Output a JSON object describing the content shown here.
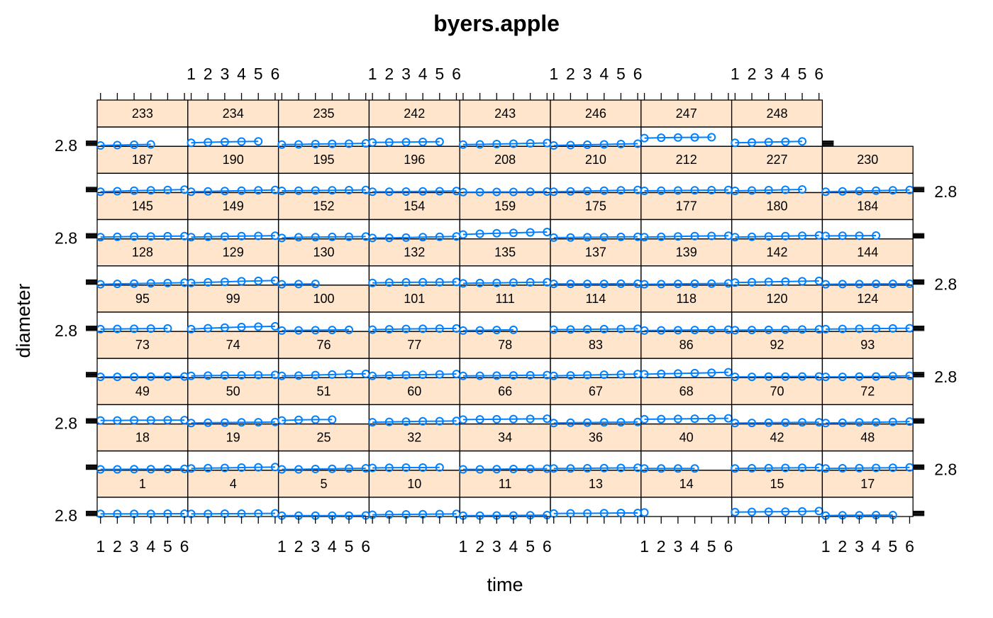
{
  "chart_data": {
    "type": "line",
    "title": "byers.apple",
    "xlabel": "time",
    "ylabel": "diameter",
    "x_ticks": [
      1,
      2,
      3,
      4,
      5,
      6
    ],
    "y_tick_labels": [
      "2.8"
    ],
    "y_tick_value": 2.8,
    "xlim": [
      0.8,
      6.2
    ],
    "ylim": [
      2.75,
      3.85
    ],
    "colors": {
      "line": "#0080ff",
      "strip_fill": "#ffe5cc",
      "frame": "#000000"
    },
    "rows": [
      {
        "apples": [
          1,
          4,
          5,
          10,
          11,
          13,
          14,
          15,
          17
        ]
      },
      {
        "apples": [
          18,
          19,
          25,
          32,
          34,
          36,
          40,
          42,
          48
        ]
      },
      {
        "apples": [
          49,
          50,
          51,
          60,
          66,
          67,
          68,
          70,
          72
        ]
      },
      {
        "apples": [
          73,
          74,
          76,
          77,
          78,
          83,
          86,
          92,
          93
        ]
      },
      {
        "apples": [
          95,
          99,
          100,
          101,
          111,
          114,
          118,
          120,
          124
        ]
      },
      {
        "apples": [
          128,
          129,
          130,
          132,
          135,
          137,
          139,
          142,
          144
        ]
      },
      {
        "apples": [
          145,
          149,
          152,
          154,
          159,
          175,
          177,
          180,
          184
        ]
      },
      {
        "apples": [
          187,
          190,
          195,
          196,
          208,
          210,
          212,
          227,
          230
        ]
      },
      {
        "apples": [
          233,
          234,
          235,
          242,
          243,
          246,
          247,
          248
        ]
      }
    ],
    "series": [
      {
        "name": "1",
        "values": [
          2.9,
          2.9,
          2.9,
          2.9,
          2.91,
          2.91
        ]
      },
      {
        "name": "4",
        "values": [
          2.9,
          2.9,
          2.91,
          2.91,
          2.92,
          2.93
        ]
      },
      {
        "name": "5",
        "values": [
          2.8,
          2.8,
          2.8,
          2.8,
          2.8,
          2.81
        ]
      },
      {
        "name": "10",
        "values": [
          2.85,
          2.86,
          2.87,
          2.88,
          2.89,
          2.9
        ]
      },
      {
        "name": "11",
        "values": [
          2.8,
          2.8,
          2.81,
          2.81,
          2.82,
          2.83
        ]
      },
      {
        "name": "13",
        "values": [
          2.92,
          2.93,
          2.93,
          2.94,
          2.95,
          2.95
        ]
      },
      {
        "name": "14",
        "values": [
          2.98
        ]
      },
      {
        "name": "15",
        "values": [
          3.0,
          3.01,
          3.02,
          3.03,
          3.04,
          3.06
        ]
      },
      {
        "name": "17",
        "values": [
          2.8,
          2.82,
          2.82,
          2.83,
          2.83
        ]
      },
      {
        "name": "18",
        "values": [
          2.8,
          2.8,
          2.81,
          2.81,
          2.82,
          2.83
        ]
      },
      {
        "name": "19",
        "values": [
          2.85,
          2.87,
          2.88,
          2.9,
          2.92,
          2.93
        ]
      },
      {
        "name": "25",
        "values": [
          2.8,
          2.8,
          2.82,
          2.83,
          2.85,
          2.86
        ]
      },
      {
        "name": "32",
        "values": [
          2.88,
          2.89,
          2.9,
          2.9,
          2.91
        ]
      },
      {
        "name": "34",
        "values": [
          2.8,
          2.8,
          2.81,
          2.82,
          2.83,
          2.84
        ]
      },
      {
        "name": "36",
        "values": [
          2.85,
          2.85,
          2.86,
          2.87,
          2.88,
          2.89
        ]
      },
      {
        "name": "40",
        "values": [
          2.85,
          2.85,
          2.85,
          2.85
        ]
      },
      {
        "name": "42",
        "values": [
          2.85,
          2.86,
          2.87,
          2.88,
          2.89,
          2.9
        ]
      },
      {
        "name": "48",
        "values": [
          2.85,
          2.86,
          2.87,
          2.88,
          2.89,
          2.91
        ]
      },
      {
        "name": "49",
        "values": [
          2.95,
          2.95,
          2.96,
          2.96,
          2.97,
          2.97
        ]
      },
      {
        "name": "50",
        "values": [
          2.8,
          2.82,
          2.83,
          2.84,
          2.85,
          2.86
        ]
      },
      {
        "name": "51",
        "values": [
          2.95,
          2.98,
          3.0,
          3.0
        ]
      },
      {
        "name": "60",
        "values": [
          2.85,
          2.87,
          2.88,
          2.9,
          2.91,
          2.92
        ]
      },
      {
        "name": "66",
        "values": [
          3.0,
          3.01,
          3.02,
          3.03,
          3.04,
          3.05
        ]
      },
      {
        "name": "67",
        "values": [
          2.8,
          2.82,
          2.83,
          2.84,
          2.85,
          2.86
        ]
      },
      {
        "name": "68",
        "values": [
          3.02,
          3.03,
          3.04,
          3.05,
          3.06,
          3.07
        ]
      },
      {
        "name": "70",
        "values": [
          2.8,
          2.81,
          2.82,
          2.83,
          2.84,
          2.85
        ]
      },
      {
        "name": "72",
        "values": [
          2.8,
          2.82,
          2.84,
          2.85,
          2.87,
          2.89
        ]
      },
      {
        "name": "73",
        "values": [
          2.8,
          2.8,
          2.8,
          2.81,
          2.81,
          2.82
        ]
      },
      {
        "name": "74",
        "values": [
          2.85,
          2.87,
          2.88,
          2.89,
          2.9,
          2.91
        ]
      },
      {
        "name": "76",
        "values": [
          2.85,
          2.87,
          2.9,
          2.93,
          2.96,
          2.97
        ]
      },
      {
        "name": "77",
        "values": [
          2.85,
          2.88,
          2.9,
          2.92,
          2.94,
          2.96
        ]
      },
      {
        "name": "78",
        "values": [
          2.85,
          2.86,
          2.87,
          2.88,
          2.89,
          2.9
        ]
      },
      {
        "name": "83",
        "values": [
          2.85,
          2.88,
          2.9,
          2.92,
          2.94,
          2.96
        ]
      },
      {
        "name": "86",
        "values": [
          2.95,
          2.97,
          2.99,
          3.01,
          3.03,
          3.06
        ]
      },
      {
        "name": "92",
        "values": [
          2.8,
          2.8,
          2.81,
          2.81,
          2.82,
          2.82
        ]
      },
      {
        "name": "93",
        "values": [
          2.8,
          2.8,
          2.81,
          2.82,
          2.84,
          2.86
        ]
      },
      {
        "name": "95",
        "values": [
          2.88,
          2.89,
          2.9,
          2.91,
          2.92
        ]
      },
      {
        "name": "99",
        "values": [
          2.88,
          2.93,
          2.97,
          3.0,
          3.02,
          3.04
        ]
      },
      {
        "name": "100",
        "values": [
          2.8,
          2.81,
          2.82,
          2.83,
          2.84
        ]
      },
      {
        "name": "101",
        "values": [
          2.85,
          2.87,
          2.89,
          2.9,
          2.91,
          2.92
        ]
      },
      {
        "name": "111",
        "values": [
          2.8,
          2.81,
          2.83,
          2.84
        ]
      },
      {
        "name": "114",
        "values": [
          2.85,
          2.86,
          2.87,
          2.88,
          2.89,
          2.9
        ]
      },
      {
        "name": "118",
        "values": [
          2.8,
          2.81,
          2.82,
          2.83,
          2.84,
          2.85
        ]
      },
      {
        "name": "120",
        "values": [
          2.82,
          2.83,
          2.84,
          2.85,
          2.86,
          2.87
        ]
      },
      {
        "name": "124",
        "values": [
          2.88,
          2.89,
          2.9,
          2.91,
          2.92,
          2.93
        ]
      },
      {
        "name": "128",
        "values": [
          2.8,
          2.82,
          2.84,
          2.86,
          2.87,
          2.89
        ]
      },
      {
        "name": "129",
        "values": [
          2.88,
          2.91,
          2.94,
          2.97,
          2.99,
          3.01
        ]
      },
      {
        "name": "130",
        "values": [
          2.8,
          2.81,
          2.82
        ]
      },
      {
        "name": "132",
        "values": [
          2.88,
          2.9,
          2.91,
          2.92,
          2.92,
          2.93
        ]
      },
      {
        "name": "135",
        "values": [
          2.85,
          2.87,
          2.88,
          2.9,
          2.91,
          2.92
        ]
      },
      {
        "name": "137",
        "values": [
          2.82,
          2.82,
          2.82,
          2.82,
          2.83,
          2.83
        ]
      },
      {
        "name": "139",
        "values": [
          2.8,
          2.81,
          2.82,
          2.83,
          2.84,
          2.85
        ]
      },
      {
        "name": "142",
        "values": [
          2.9,
          2.92,
          2.94,
          2.95,
          2.97,
          2.99
        ]
      },
      {
        "name": "144",
        "values": [
          2.8,
          2.81,
          2.81,
          2.82,
          2.82,
          2.83
        ]
      },
      {
        "name": "145",
        "values": [
          2.85,
          2.87,
          2.88,
          2.89,
          2.9,
          2.91
        ]
      },
      {
        "name": "149",
        "values": [
          2.85,
          2.87,
          2.89,
          2.91,
          2.92,
          2.93
        ]
      },
      {
        "name": "152",
        "values": [
          2.8,
          2.84,
          2.85,
          2.86,
          2.87,
          2.88
        ]
      },
      {
        "name": "154",
        "values": [
          2.8,
          2.81,
          2.82,
          2.85,
          2.87,
          2.89
        ]
      },
      {
        "name": "159",
        "values": [
          3.0,
          3.04,
          3.07,
          3.09,
          3.12,
          3.14
        ]
      },
      {
        "name": "175",
        "values": [
          2.82,
          2.83,
          2.84,
          2.85,
          2.86,
          2.87
        ]
      },
      {
        "name": "177",
        "values": [
          2.85,
          2.87,
          2.89,
          2.91,
          2.92,
          2.93
        ]
      },
      {
        "name": "180",
        "values": [
          2.85,
          2.87,
          2.89,
          2.91,
          2.93,
          2.95
        ]
      },
      {
        "name": "184",
        "values": [
          2.92,
          2.93,
          2.93,
          2.94
        ]
      },
      {
        "name": "187",
        "values": [
          2.8,
          2.83,
          2.86,
          2.88,
          2.9,
          2.92
        ]
      },
      {
        "name": "190",
        "values": [
          2.8,
          2.82,
          2.84,
          2.86,
          2.88,
          2.9
        ]
      },
      {
        "name": "195",
        "values": [
          2.85,
          2.86,
          2.87,
          2.88,
          2.89,
          2.9
        ]
      },
      {
        "name": "196",
        "values": [
          2.8,
          2.8,
          2.81,
          2.82,
          2.83,
          2.84
        ]
      },
      {
        "name": "208",
        "values": [
          2.78,
          2.78,
          2.79,
          2.79,
          2.8,
          2.81
        ]
      },
      {
        "name": "210",
        "values": [
          2.8,
          2.82,
          2.84,
          2.86,
          2.88,
          2.9
        ]
      },
      {
        "name": "212",
        "values": [
          2.85,
          2.86,
          2.87,
          2.88,
          2.89,
          2.9
        ]
      },
      {
        "name": "227",
        "values": [
          2.85,
          2.87,
          2.89,
          2.91,
          2.93
        ]
      },
      {
        "name": "230",
        "values": [
          2.8,
          2.82,
          2.84,
          2.86,
          2.88,
          2.9
        ]
      },
      {
        "name": "233",
        "values": [
          2.8,
          2.82,
          2.84,
          2.86
        ]
      },
      {
        "name": "234",
        "values": [
          2.95,
          2.98,
          3.0,
          3.02,
          3.03
        ]
      },
      {
        "name": "235",
        "values": [
          2.85,
          2.86,
          2.88,
          2.89,
          2.9,
          2.92
        ]
      },
      {
        "name": "242",
        "values": [
          2.97,
          2.98,
          2.99,
          3.0,
          3.01
        ]
      },
      {
        "name": "243",
        "values": [
          2.85,
          2.86,
          2.88,
          2.9,
          2.92,
          2.94
        ]
      },
      {
        "name": "246",
        "values": [
          2.8,
          2.82,
          2.84,
          2.86,
          2.88,
          2.9
        ]
      },
      {
        "name": "247",
        "values": [
          3.22,
          3.24,
          3.25,
          3.26,
          3.27
        ]
      },
      {
        "name": "248",
        "values": [
          2.95,
          2.97,
          2.99,
          3.01,
          3.03
        ]
      }
    ]
  }
}
